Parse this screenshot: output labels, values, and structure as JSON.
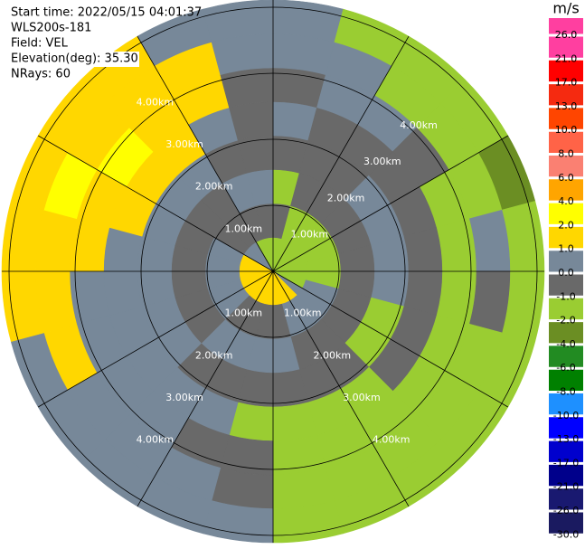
{
  "chart_data": {
    "type": "ppi",
    "info_lines": [
      "Start time: 2022/05/15 04:01:37",
      "WLS200s-181",
      "Field: VEL",
      "Elevation(deg): 35.30",
      "NRays: 60"
    ],
    "rings": [
      {
        "value": 1,
        "label": "1.00km"
      },
      {
        "value": 2,
        "label": "2.00km"
      },
      {
        "value": 3,
        "label": "3.00km"
      },
      {
        "value": 4,
        "label": "4.00km"
      }
    ],
    "colorbar": {
      "label": "m/s",
      "ticks": [
        {
          "value": 26,
          "label": "26.0"
        },
        {
          "value": 21,
          "label": "21.0"
        },
        {
          "value": 17,
          "label": "17.0"
        },
        {
          "value": 13,
          "label": "13.0"
        },
        {
          "value": 10,
          "label": "10.0"
        },
        {
          "value": 8,
          "label": "8.0"
        },
        {
          "value": 6,
          "label": "6.0"
        },
        {
          "value": 4,
          "label": "4.0"
        },
        {
          "value": 2,
          "label": "2.0"
        },
        {
          "value": 1,
          "label": "1.0"
        },
        {
          "value": 0,
          "label": "0.0"
        },
        {
          "value": -1,
          "label": "-1.0"
        },
        {
          "value": -2,
          "label": "-2.0"
        },
        {
          "value": -4,
          "label": "-4.0"
        },
        {
          "value": -6,
          "label": "-6.0"
        },
        {
          "value": -8,
          "label": "-8.0"
        },
        {
          "value": -10,
          "label": "-10.0"
        },
        {
          "value": -13,
          "label": "-13.0"
        },
        {
          "value": -17,
          "label": "-17.0"
        },
        {
          "value": -21,
          "label": "-21.0"
        },
        {
          "value": -26,
          "label": "-26.0"
        },
        {
          "value": -30,
          "label": "-30.0"
        }
      ],
      "colors": [
        "#ff3fa0",
        "#ff0000",
        "#f52a10",
        "#ff4500",
        "#ff6347",
        "#fa8072",
        "#ffa500",
        "#ffff00",
        "#ffd700",
        "#778899",
        "#696969",
        "#9acd32",
        "#6b8e23",
        "#228b22",
        "#008000",
        "#1e90ff",
        "#0000ff",
        "#0000cd",
        "#00008b",
        "#191970",
        "#1a1a60"
      ]
    },
    "field": [
      [
        -1.5,
        -0.5,
        -1.5,
        -0.5,
        0.5,
        -0.5,
        0.5,
        0.5
      ],
      [
        -1.5,
        -1.5,
        -0.5,
        -0.5,
        -0.5,
        0.5,
        0.5,
        -1.5
      ],
      [
        -1.5,
        -1.5,
        -0.5,
        -0.5,
        -0.5,
        0.5,
        -1.5,
        -1.5
      ],
      [
        -1.5,
        -1.5,
        -0.5,
        0.5,
        -0.5,
        -0.5,
        -1.5,
        -1.5
      ],
      [
        -1.5,
        -1.5,
        -0.5,
        0.5,
        -0.5,
        -1.5,
        -1.5,
        -3
      ],
      [
        -1.5,
        -1.5,
        -0.5,
        0.5,
        -0.5,
        -1.5,
        0.5,
        -1.5
      ],
      [
        -1.5,
        -1.5,
        -0.5,
        0.5,
        -0.5,
        -1.5,
        -0.5,
        -1.5
      ],
      [
        -1.5,
        0.5,
        -0.5,
        -1.5,
        -0.5,
        -1.5,
        -1.5,
        -1.5
      ],
      [
        0.5,
        0.5,
        -0.5,
        -1.5,
        -0.5,
        -1.5,
        -1.5,
        -1.5
      ],
      [
        1.5,
        0.5,
        -0.5,
        -0.5,
        -1.5,
        -1.5,
        -1.5,
        -1.5
      ],
      [
        1.5,
        0.5,
        -0.5,
        -0.5,
        -1.5,
        -1.5,
        -1.5,
        -1.5
      ],
      [
        1.5,
        -0.5,
        0.5,
        -0.5,
        -1.5,
        -1.5,
        -1.5,
        -1.5
      ],
      [
        1.5,
        -0.5,
        0.5,
        -0.5,
        -1.5,
        -0.5,
        -0.5,
        0.5
      ],
      [
        1.5,
        -0.5,
        0.5,
        -0.5,
        0.5,
        -0.5,
        0.5,
        0.5
      ],
      [
        1.5,
        -0.5,
        0.5,
        -0.5,
        0.5,
        0.5,
        0.5,
        0.5
      ],
      [
        1.5,
        0.5,
        -0.5,
        0.5,
        0.5,
        0.5,
        0.5,
        0.5
      ],
      [
        1.5,
        0.5,
        -0.5,
        0.5,
        0.5,
        0.5,
        1.5,
        0.5
      ],
      [
        1.5,
        0.5,
        -0.5,
        0.5,
        0.5,
        0.5,
        1.5,
        1.5
      ],
      [
        1.5,
        0.5,
        -0.5,
        0.5,
        0.5,
        1.5,
        1.5,
        1.5
      ],
      [
        1.5,
        0.5,
        -0.5,
        0.5,
        1.5,
        1.5,
        3,
        1.5
      ],
      [
        0.5,
        -0.5,
        -0.5,
        0.5,
        1.5,
        3,
        1.5,
        1.5
      ],
      [
        0.5,
        -0.5,
        -0.5,
        0.5,
        1.5,
        1.5,
        1.5,
        1.5
      ],
      [
        -1.5,
        -0.5,
        0.5,
        -0.5,
        0.5,
        1.5,
        1.5,
        0.5
      ],
      [
        -1.5,
        -0.5,
        0.5,
        -0.5,
        -0.5,
        -0.5,
        0.5,
        0.5
      ]
    ]
  }
}
